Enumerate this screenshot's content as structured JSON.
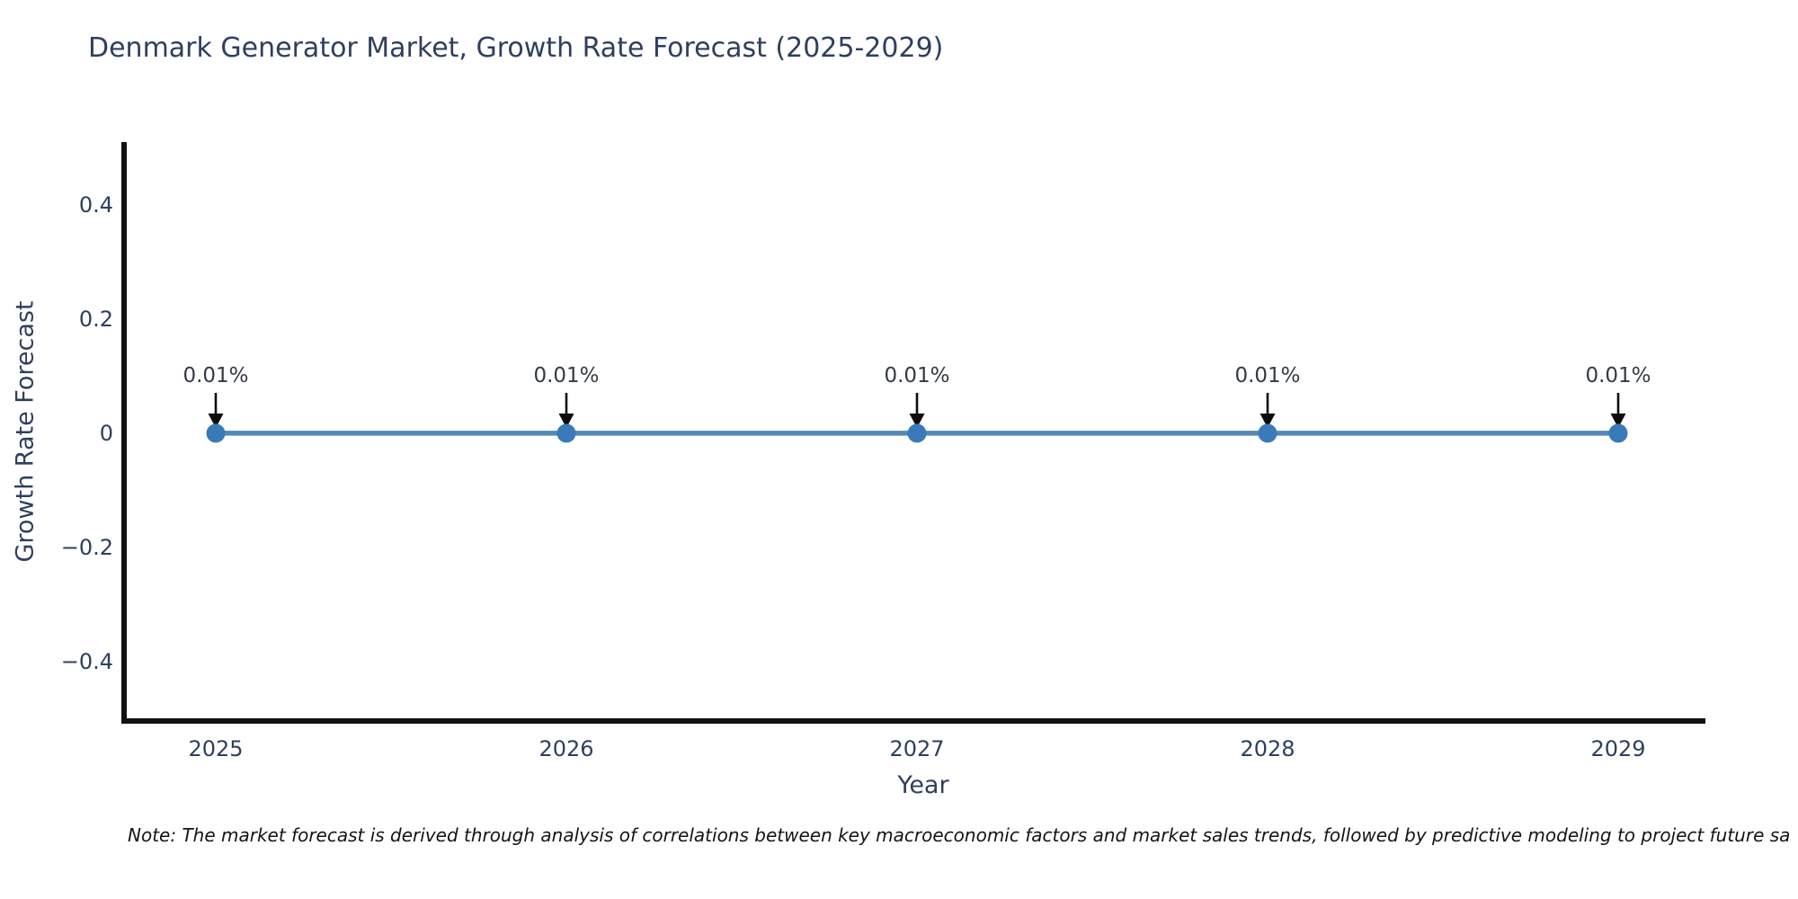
{
  "chart": {
    "title": "Denmark Generator Market, Growth Rate Forecast (2025-2029)",
    "xlabel": "Year",
    "ylabel": "Growth Rate Forecast",
    "note": "Note: The market forecast is derived through analysis of correlations between key macroeconomic factors and market sales trends, followed by predictive modeling to project future sa"
  },
  "chart_data": {
    "type": "line",
    "title": "Denmark Generator Market, Growth Rate Forecast (2025-2029)",
    "xlabel": "Year",
    "ylabel": "Growth Rate Forecast",
    "x": [
      2025,
      2026,
      2027,
      2028,
      2029
    ],
    "series": [
      {
        "name": "Growth Rate Forecast",
        "values": [
          0.0001,
          0.0001,
          0.0001,
          0.0001,
          0.0001
        ]
      }
    ],
    "point_labels": [
      "0.01%",
      "0.01%",
      "0.01%",
      "0.01%",
      "0.01%"
    ],
    "xticks": [
      {
        "value": 2025,
        "label": "2025"
      },
      {
        "value": 2026,
        "label": "2026"
      },
      {
        "value": 2027,
        "label": "2027"
      },
      {
        "value": 2028,
        "label": "2028"
      },
      {
        "value": 2029,
        "label": "2029"
      }
    ],
    "yticks": [
      {
        "value": 0.4,
        "label": "0.4"
      },
      {
        "value": 0.2,
        "label": "0.2"
      },
      {
        "value": 0,
        "label": "0"
      },
      {
        "value": -0.2,
        "label": "−0.2"
      },
      {
        "value": -0.4,
        "label": "−0.4"
      }
    ],
    "xlim": [
      2024.74,
      2029.25
    ],
    "ylim": [
      -0.5,
      0.5
    ],
    "grid": false,
    "legend": false,
    "annotation_style": "label-with-down-arrow",
    "colors": {
      "line": "#5489b4",
      "marker": "#3a7ab8",
      "axis": "#111111",
      "arrow": "#0d0d0d",
      "text": "#2e3f5f",
      "annotation_text": "#333a44"
    }
  }
}
